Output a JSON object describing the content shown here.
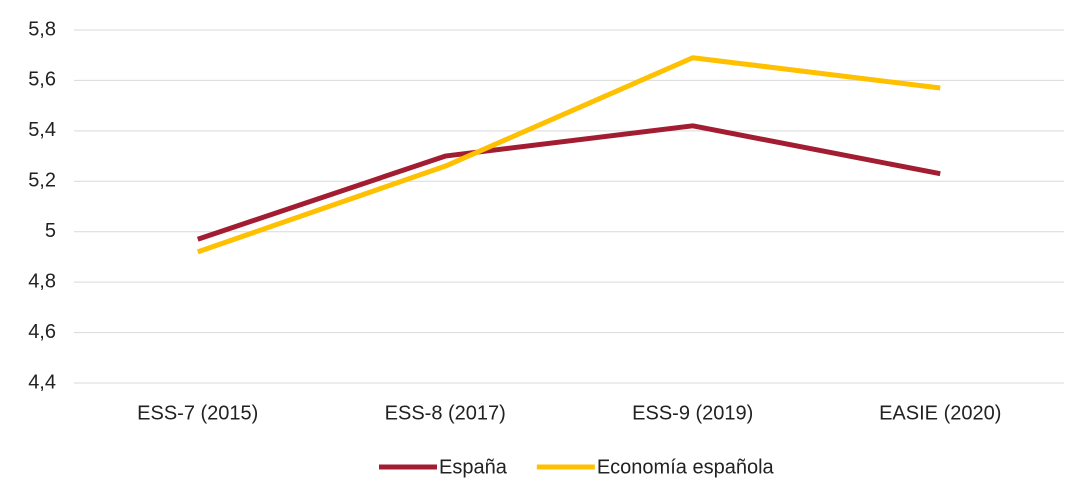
{
  "chart_data": {
    "type": "line",
    "categories": [
      "ESS-7 (2015)",
      "ESS-8 (2017)",
      "ESS-9 (2019)",
      "EASIE (2020)"
    ],
    "series": [
      {
        "name": "España",
        "color": "#a31d32",
        "values": [
          4.97,
          5.3,
          5.42,
          5.23
        ]
      },
      {
        "name": "Economía española",
        "color": "#ffc000",
        "values": [
          4.92,
          5.26,
          5.69,
          5.57
        ]
      }
    ],
    "ylim": [
      4.4,
      5.8
    ],
    "yticks": [
      {
        "value": 4.4,
        "label": "4,4"
      },
      {
        "value": 4.6,
        "label": "4,6"
      },
      {
        "value": 4.8,
        "label": "4,8"
      },
      5,
      {
        "value": 5.2,
        "label": "5,2"
      },
      {
        "value": 5.4,
        "label": "5,4"
      },
      {
        "value": 5.6,
        "label": "5,6"
      },
      {
        "value": 5.8,
        "label": "5,8"
      }
    ],
    "grid": true,
    "legend": "bottom"
  }
}
